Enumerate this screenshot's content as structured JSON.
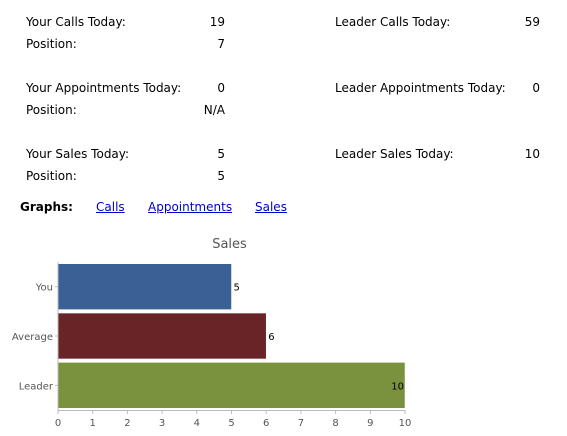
{
  "stats": {
    "your_calls_label": "Your Calls Today:",
    "your_calls_value": "19",
    "calls_position_label": "Position:",
    "calls_position_value": "7",
    "leader_calls_label": "Leader Calls Today:",
    "leader_calls_value": "59",
    "your_appointments_label": "Your Appointments Today:",
    "your_appointments_value": "0",
    "appointments_position_label": "Position:",
    "appointments_position_value": "N/A",
    "leader_appointments_label": "Leader Appointments Today:",
    "leader_appointments_value": "0",
    "your_sales_label": "Your Sales Today:",
    "your_sales_value": "5",
    "sales_position_label": "Position:",
    "sales_position_value": "5",
    "leader_sales_label": "Leader Sales Today:",
    "leader_sales_value": "10"
  },
  "graphs": {
    "label": "Graphs:",
    "links": [
      "Calls",
      "Appointments",
      "Sales"
    ]
  },
  "chart_data": {
    "type": "bar",
    "orientation": "horizontal",
    "title": "Sales",
    "categories": [
      "You",
      "Average",
      "Leader"
    ],
    "values": [
      5,
      6,
      10
    ],
    "colors": [
      "#3a6095",
      "#682426",
      "#7a913d"
    ],
    "xlim": [
      0,
      10
    ],
    "xticks": [
      0,
      1,
      2,
      3,
      4,
      5,
      6,
      7,
      8,
      9,
      10
    ],
    "xlabel": "",
    "ylabel": "",
    "grid": false,
    "legend": "none"
  }
}
